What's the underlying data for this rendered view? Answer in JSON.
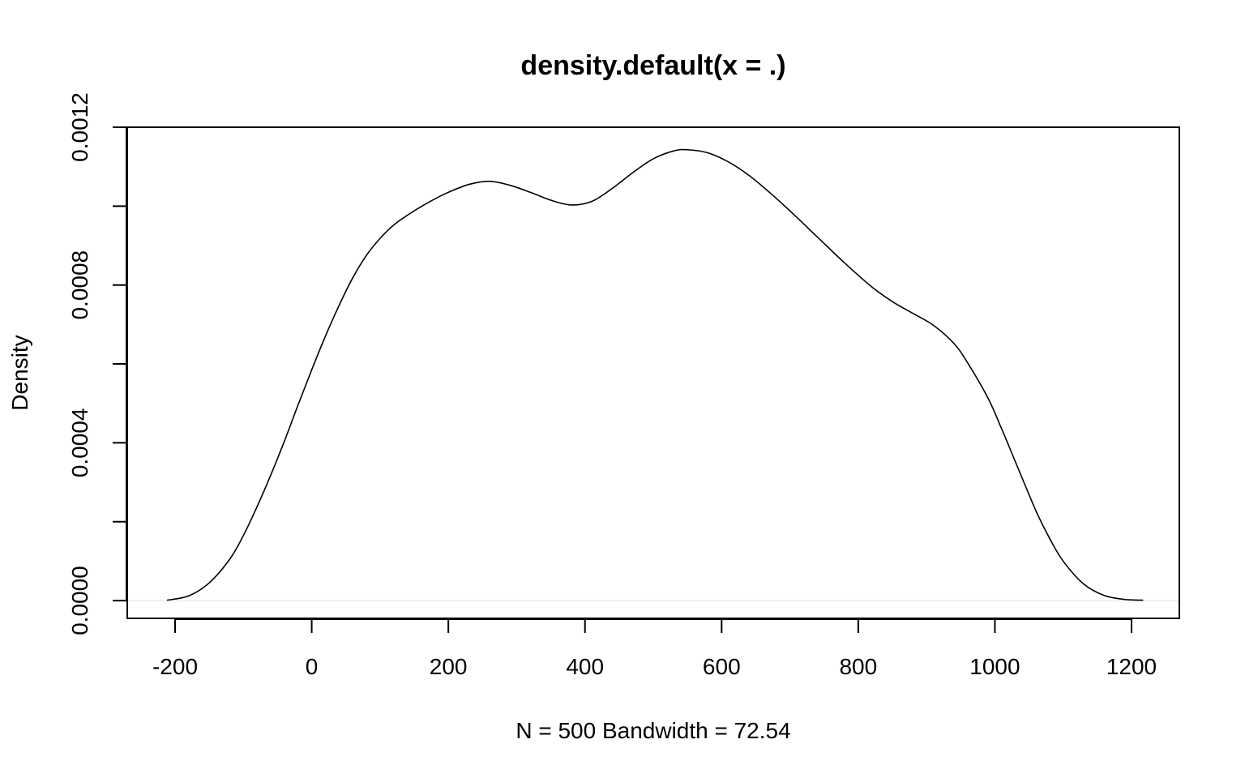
{
  "chart_data": {
    "type": "line",
    "title": "density.default(x = .)",
    "xlabel": "N = 500   Bandwidth = 72.54",
    "ylabel": "Density",
    "xlim": [
      -270,
      1270
    ],
    "ylim": [
      -4.5e-05,
      0.0012
    ],
    "x_ticks": [
      -200,
      0,
      200,
      400,
      600,
      800,
      1000,
      1200
    ],
    "x_tick_labels": [
      "-200",
      "0",
      "200",
      "400",
      "600",
      "800",
      "1000",
      "1200"
    ],
    "y_ticks": [
      0,
      0.0002,
      0.0004,
      0.0006,
      0.0008,
      0.001,
      0.0012
    ],
    "y_tick_labels": [
      "0.0000",
      "",
      "0.0004",
      "",
      "0.0008",
      "",
      "0.0012"
    ],
    "grid": false,
    "baseline": 0,
    "series": [
      {
        "x": [
          -212,
          -180,
          -150,
          -120,
          -100,
          -80,
          -60,
          -40,
          -20,
          0,
          20,
          40,
          60,
          80,
          100,
          120,
          150,
          180,
          200,
          230,
          260,
          290,
          320,
          350,
          380,
          410,
          440,
          470,
          500,
          530,
          550,
          580,
          610,
          640,
          670,
          700,
          740,
          780,
          820,
          850,
          880,
          910,
          940,
          960,
          990,
          1010,
          1030,
          1060,
          1080,
          1100,
          1130,
          1160,
          1190,
          1217
        ],
        "y": [
          1e-06,
          1.2e-05,
          4.5e-05,
          0.000105,
          0.000165,
          0.000238,
          0.000318,
          0.000404,
          0.000496,
          0.000585,
          0.00067,
          0.000748,
          0.000818,
          0.000875,
          0.000918,
          0.000952,
          0.000988,
          0.001018,
          0.001035,
          0.001055,
          0.001063,
          0.001053,
          0.001035,
          0.001015,
          0.001003,
          0.001012,
          0.001045,
          0.001085,
          0.00112,
          0.00114,
          0.001143,
          0.001135,
          0.001112,
          0.001078,
          0.001035,
          0.000988,
          0.000922,
          0.000856,
          0.000795,
          0.000758,
          0.000728,
          0.000698,
          0.000652,
          0.000603,
          0.000513,
          0.000435,
          0.000352,
          0.000228,
          0.000158,
          0.0001,
          4.2e-05,
          1.3e-05,
          3e-06,
          1e-06
        ]
      }
    ]
  }
}
